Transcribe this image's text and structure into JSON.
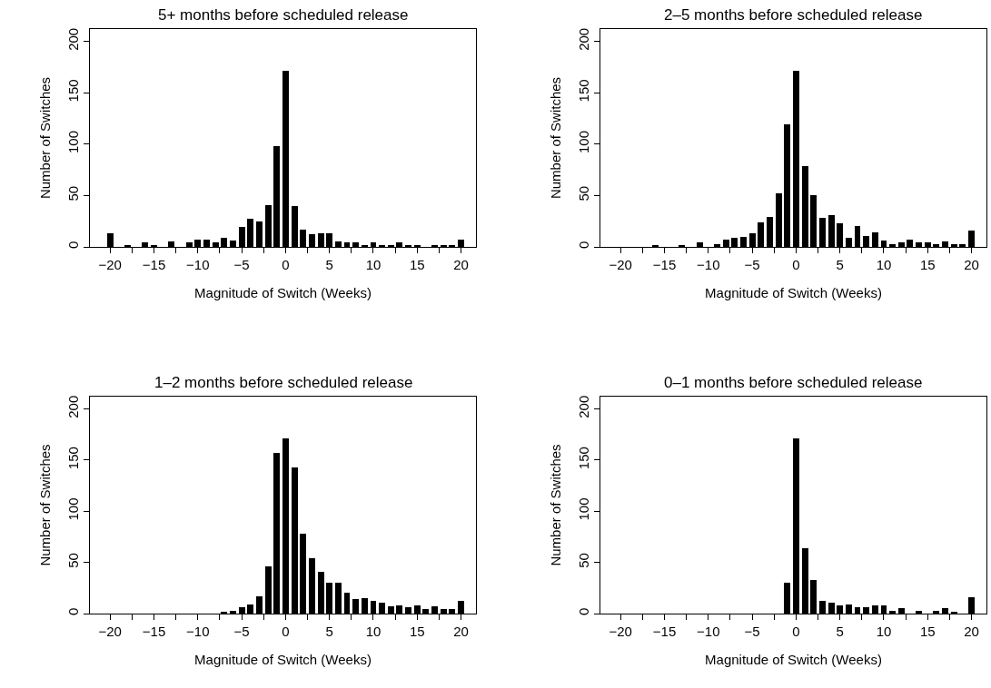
{
  "chart_data": [
    {
      "type": "bar",
      "title": "5+ months before scheduled release",
      "xlabel": "Magnitude of Switch (Weeks)",
      "ylabel": "Number of Switches",
      "color": "#000000",
      "x": [
        -20,
        -19,
        -18,
        -17,
        -16,
        -15,
        -14,
        -13,
        -12,
        -11,
        -10,
        -9,
        -8,
        -7,
        -6,
        -5,
        -4,
        -3,
        -2,
        -1,
        0,
        1,
        2,
        3,
        4,
        5,
        6,
        7,
        8,
        9,
        10,
        11,
        12,
        13,
        14,
        15,
        16,
        17,
        18,
        19,
        20
      ],
      "values": [
        13,
        0,
        2,
        0,
        4,
        2,
        0,
        5,
        0,
        4,
        7,
        7,
        4,
        9,
        6,
        19,
        27,
        25,
        41,
        98,
        171,
        40,
        17,
        12,
        13,
        13,
        5,
        4,
        4,
        2,
        4,
        2,
        2,
        4,
        2,
        1,
        0,
        1,
        1,
        1,
        7
      ],
      "xlim": [
        -22.3,
        21.7
      ],
      "xticks": [
        -20,
        {
          "value": -17.5,
          "label": null
        },
        -15,
        {
          "value": -12.5,
          "label": null
        },
        -10,
        {
          "value": -7.5,
          "label": null
        },
        -5,
        {
          "value": -2.5,
          "label": null
        },
        0,
        {
          "value": 2.5,
          "label": null
        },
        5,
        {
          "value": 7.5,
          "label": null
        },
        10,
        {
          "value": 12.5,
          "label": null
        },
        15,
        {
          "value": 17.5,
          "label": null
        },
        20
      ],
      "ylim": [
        0,
        212
      ],
      "yticks": [
        0,
        50,
        100,
        150,
        200
      ]
    },
    {
      "type": "bar",
      "title": "2–5 months before scheduled release",
      "xlabel": "Magnitude of Switch (Weeks)",
      "ylabel": "Number of Switches",
      "color": "#000000",
      "x": [
        -20,
        -19,
        -18,
        -17,
        -16,
        -15,
        -14,
        -13,
        -12,
        -11,
        -10,
        -9,
        -8,
        -7,
        -6,
        -5,
        -4,
        -3,
        -2,
        -1,
        0,
        1,
        2,
        3,
        4,
        5,
        6,
        7,
        8,
        9,
        10,
        11,
        12,
        13,
        14,
        15,
        16,
        17,
        18,
        19,
        20
      ],
      "values": [
        0,
        0,
        0,
        0,
        1,
        0,
        0,
        1,
        0,
        4,
        0,
        3,
        7,
        9,
        10,
        13,
        24,
        29,
        52,
        119,
        171,
        79,
        50,
        28,
        31,
        23,
        9,
        20,
        11,
        14,
        6,
        3,
        4,
        7,
        4,
        4,
        3,
        5,
        3,
        3,
        16
      ],
      "xlim": [
        -22.3,
        21.7
      ],
      "xticks": [
        -20,
        {
          "value": -17.5,
          "label": null
        },
        -15,
        {
          "value": -12.5,
          "label": null
        },
        -10,
        {
          "value": -7.5,
          "label": null
        },
        -5,
        {
          "value": -2.5,
          "label": null
        },
        0,
        {
          "value": 2.5,
          "label": null
        },
        5,
        {
          "value": 7.5,
          "label": null
        },
        10,
        {
          "value": 12.5,
          "label": null
        },
        15,
        {
          "value": 17.5,
          "label": null
        },
        20
      ],
      "ylim": [
        0,
        212
      ],
      "yticks": [
        0,
        50,
        100,
        150,
        200
      ]
    },
    {
      "type": "bar",
      "title": "1–2 months before scheduled release",
      "xlabel": "Magnitude of Switch (Weeks)",
      "ylabel": "Number of Switches",
      "color": "#000000",
      "x": [
        -20,
        -19,
        -18,
        -17,
        -16,
        -15,
        -14,
        -13,
        -12,
        -11,
        -10,
        -9,
        -8,
        -7,
        -6,
        -5,
        -4,
        -3,
        -2,
        -1,
        0,
        1,
        2,
        3,
        4,
        5,
        6,
        7,
        8,
        9,
        10,
        11,
        12,
        13,
        14,
        15,
        16,
        17,
        18,
        19,
        20
      ],
      "values": [
        0,
        0,
        0,
        0,
        0,
        0,
        0,
        0,
        0,
        0,
        0,
        0,
        0,
        1,
        3,
        6,
        9,
        17,
        46,
        157,
        171,
        143,
        78,
        54,
        41,
        30,
        30,
        20,
        14,
        15,
        12,
        11,
        7,
        8,
        6,
        8,
        4,
        7,
        4,
        4,
        12
      ],
      "xlim": [
        -22.3,
        21.7
      ],
      "xticks": [
        -20,
        {
          "value": -17.5,
          "label": null
        },
        -15,
        {
          "value": -12.5,
          "label": null
        },
        -10,
        {
          "value": -7.5,
          "label": null
        },
        -5,
        {
          "value": -2.5,
          "label": null
        },
        0,
        {
          "value": 2.5,
          "label": null
        },
        5,
        {
          "value": 7.5,
          "label": null
        },
        10,
        {
          "value": 12.5,
          "label": null
        },
        15,
        {
          "value": 17.5,
          "label": null
        },
        20
      ],
      "ylim": [
        0,
        212
      ],
      "yticks": [
        0,
        50,
        100,
        150,
        200
      ]
    },
    {
      "type": "bar",
      "title": "0–1 months before scheduled release",
      "xlabel": "Magnitude of Switch (Weeks)",
      "ylabel": "Number of Switches",
      "color": "#000000",
      "x": [
        -20,
        -19,
        -18,
        -17,
        -16,
        -15,
        -14,
        -13,
        -12,
        -11,
        -10,
        -9,
        -8,
        -7,
        -6,
        -5,
        -4,
        -3,
        -2,
        -1,
        0,
        1,
        2,
        3,
        4,
        5,
        6,
        7,
        8,
        9,
        10,
        11,
        12,
        13,
        14,
        15,
        16,
        17,
        18,
        19,
        20
      ],
      "values": [
        0,
        0,
        0,
        0,
        0,
        0,
        0,
        0,
        0,
        0,
        0,
        0,
        0,
        0,
        0,
        0,
        0,
        0,
        0,
        30,
        171,
        64,
        33,
        12,
        11,
        8,
        9,
        6,
        6,
        8,
        8,
        3,
        5,
        0,
        3,
        0,
        3,
        5,
        1,
        0,
        16
      ],
      "xlim": [
        -22.3,
        21.7
      ],
      "xticks": [
        -20,
        {
          "value": -17.5,
          "label": null
        },
        -15,
        {
          "value": -12.5,
          "label": null
        },
        -10,
        {
          "value": -7.5,
          "label": null
        },
        -5,
        {
          "value": -2.5,
          "label": null
        },
        0,
        {
          "value": 2.5,
          "label": null
        },
        5,
        {
          "value": 7.5,
          "label": null
        },
        10,
        {
          "value": 12.5,
          "label": null
        },
        15,
        {
          "value": 17.5,
          "label": null
        },
        20
      ],
      "ylim": [
        0,
        212
      ],
      "yticks": [
        0,
        50,
        100,
        150,
        200
      ]
    }
  ]
}
